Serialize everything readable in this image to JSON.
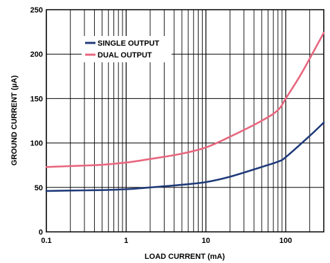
{
  "chart_data": {
    "type": "line",
    "title": "",
    "xlabel": "LOAD CURRENT (mA)",
    "ylabel": "GROUND CURRENT (µA)",
    "x_scale": "log",
    "xlim": [
      0.1,
      300
    ],
    "ylim": [
      0,
      250
    ],
    "grid": true,
    "legend_position": "top-left",
    "x_ticks": [
      0.1,
      1,
      10,
      100
    ],
    "x_tick_labels": [
      "0.1",
      "1",
      "10",
      "100"
    ],
    "y_ticks": [
      0,
      50,
      100,
      150,
      200,
      250
    ],
    "y_tick_labels": [
      "0",
      "50",
      "100",
      "150",
      "200",
      "250"
    ],
    "series": [
      {
        "name": "SINGLE OUTPUT",
        "color": "#1f3a7a",
        "x": [
          0.1,
          0.2,
          0.5,
          1,
          2,
          5,
          10,
          20,
          50,
          80,
          100,
          200,
          300
        ],
        "y": [
          46,
          46.5,
          47,
          48,
          50,
          53,
          56,
          62,
          73,
          79,
          84,
          108,
          123
        ]
      },
      {
        "name": "DUAL OUTPUT",
        "color": "#e8667e",
        "x": [
          0.1,
          0.2,
          0.5,
          1,
          2,
          5,
          10,
          20,
          50,
          80,
          100,
          150,
          200,
          300
        ],
        "y": [
          73,
          74,
          75.5,
          78,
          82,
          88,
          95,
          107,
          125,
          137,
          150,
          175,
          195,
          224
        ]
      }
    ]
  }
}
